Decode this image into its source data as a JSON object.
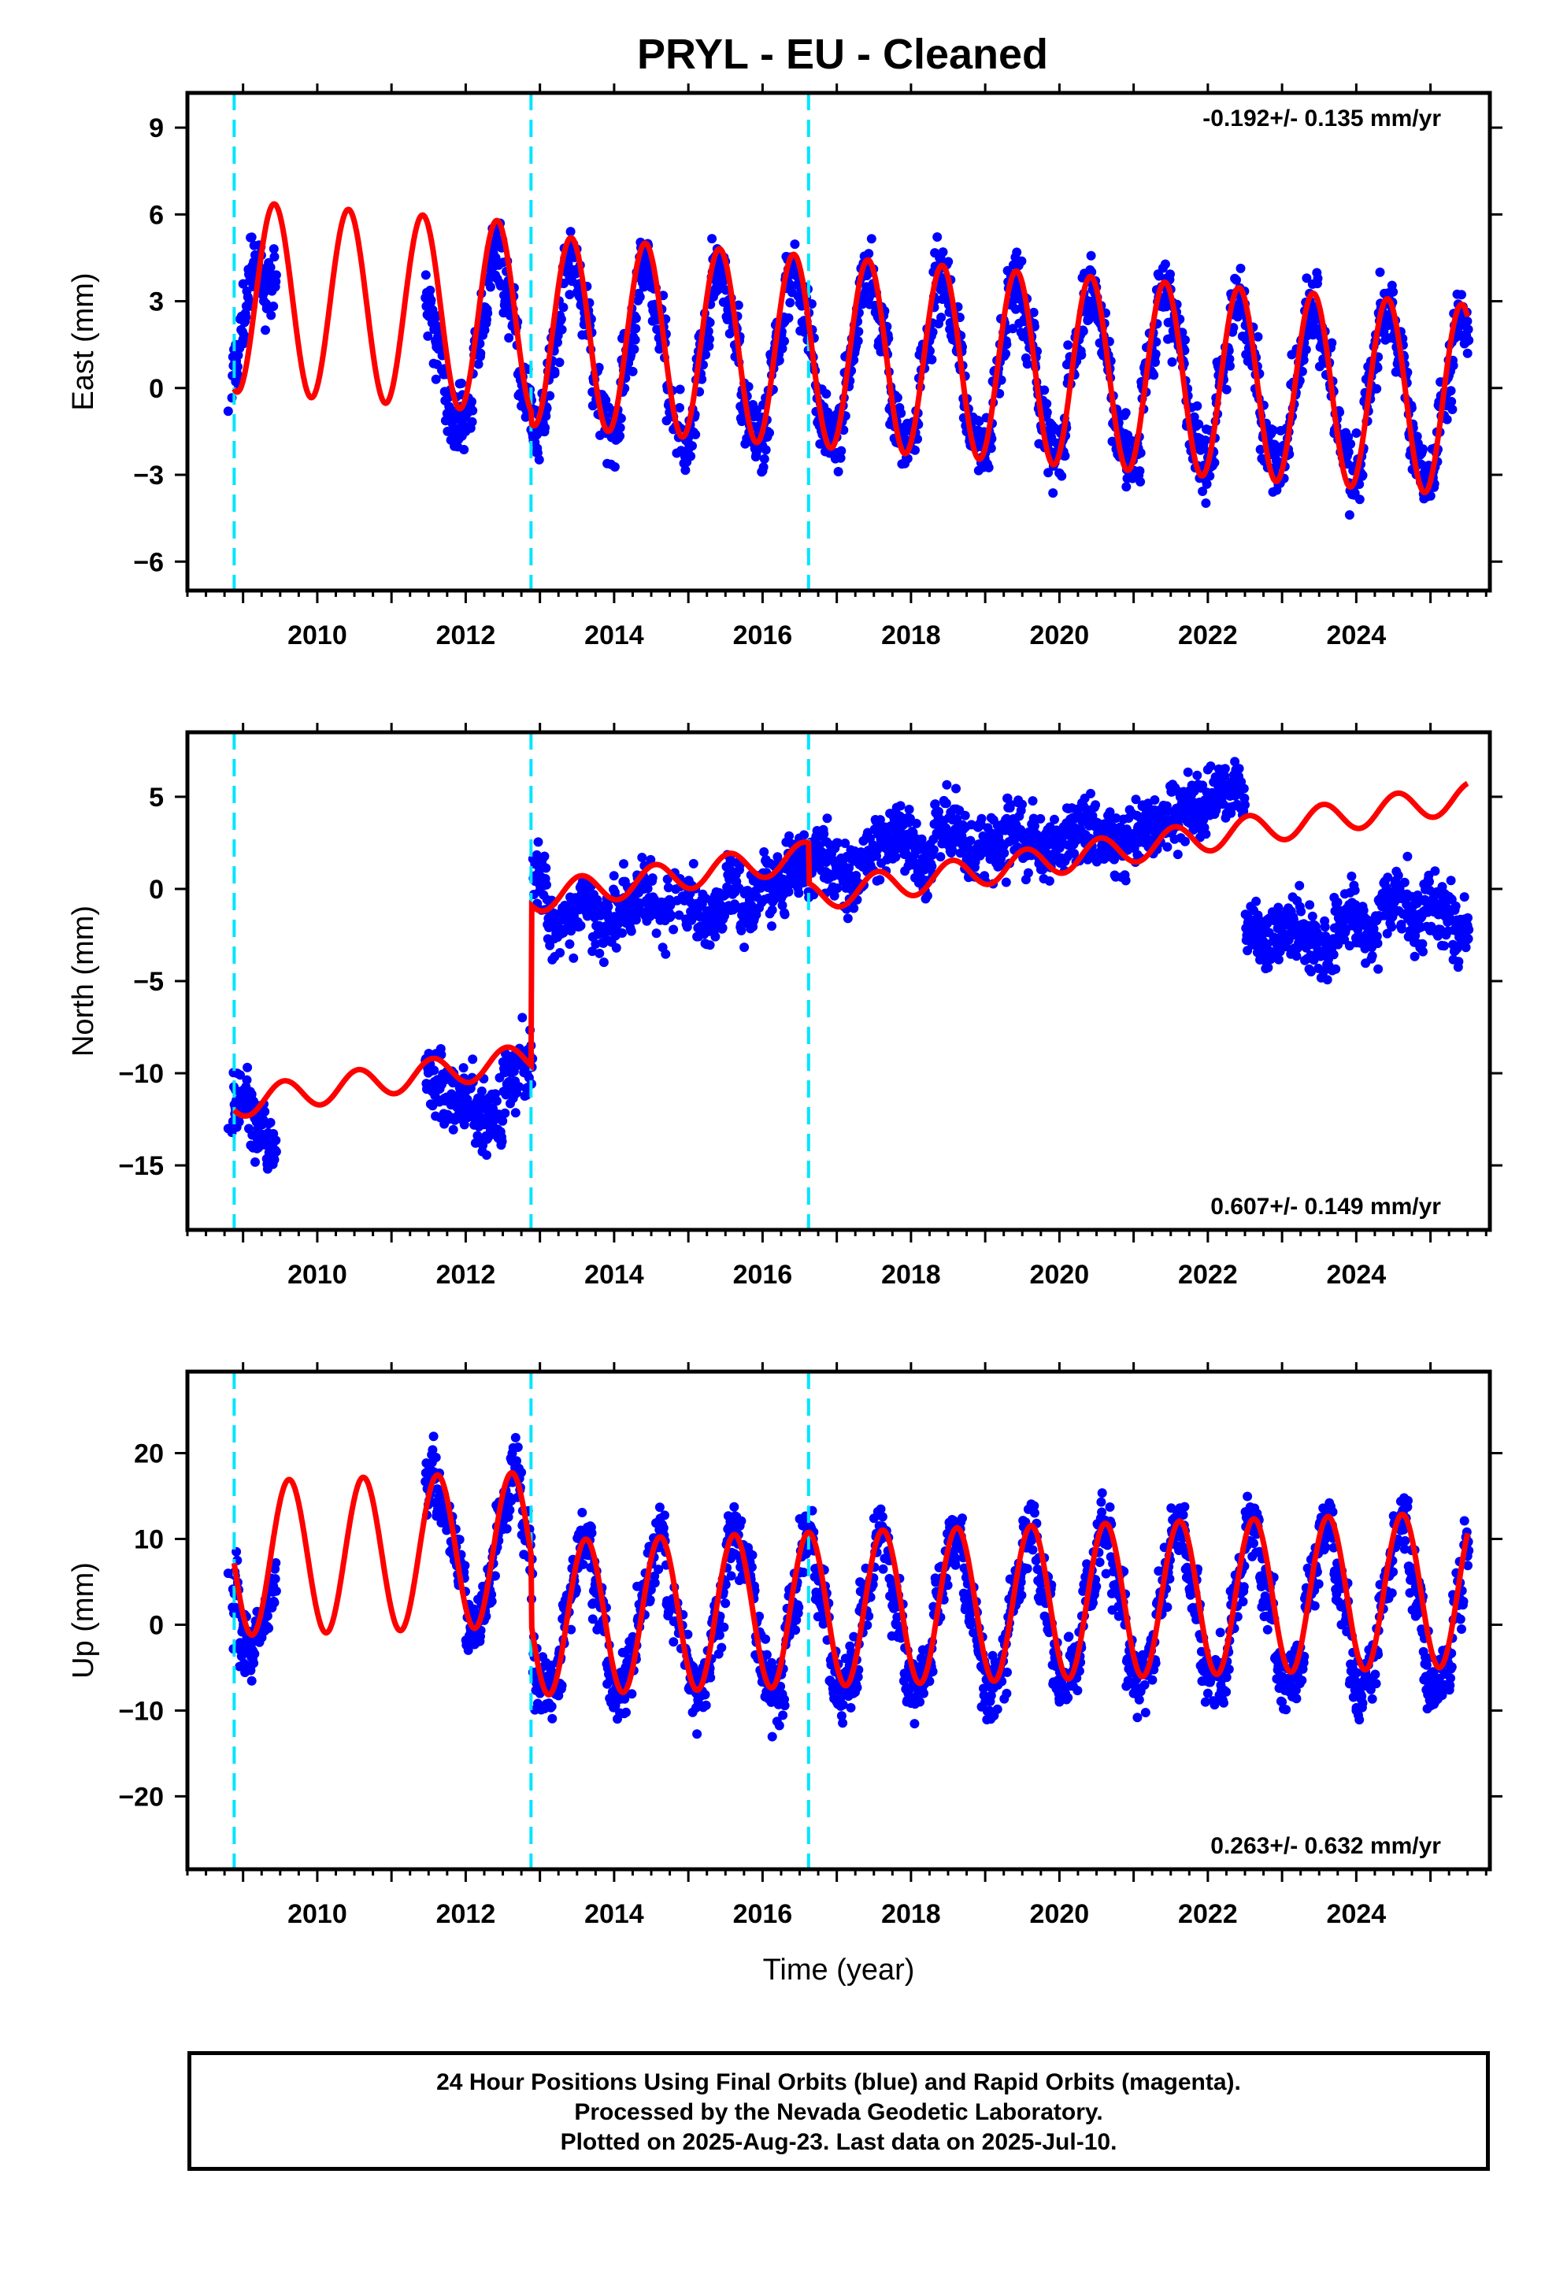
{
  "page": {
    "title": "PRYL  - EU - Cleaned",
    "footer_lines": [
      "24 Hour Positions Using Final Orbits (blue) and Rapid Orbits (magenta).",
      "Processed by the Nevada Geodetic Laboratory.",
      "Plotted on 2025-Aug-23. Last data on 2025-Jul-10."
    ]
  },
  "chart_data": [
    {
      "type": "scatter",
      "component": "east",
      "ylabel": "East (mm)",
      "xlabel": "",
      "xlim": [
        2008.25,
        2025.8
      ],
      "ylim": [
        -7,
        10.2
      ],
      "xticks": [
        2010,
        2012,
        2014,
        2016,
        2018,
        2020,
        2022,
        2024
      ],
      "yticks": [
        -6,
        -3,
        0,
        3,
        6,
        9
      ],
      "rate_label": "-0.192+/- 0.135 mm/yr",
      "rate_position": "top-right",
      "offsets": [
        2008.88,
        2012.88,
        2016.62
      ],
      "colors": {
        "points": "#0000ff",
        "model": "#ff0000",
        "offsets": "#00e5ff"
      },
      "series": [
        {
          "type": "scatter",
          "x": [
            2008.8,
            2008.9,
            2009.0,
            2009.1,
            2009.2,
            2009.3,
            2011.6,
            2011.8,
            2012.0,
            2012.2,
            2012.4,
            2012.6,
            2012.8,
            2013.0,
            2013.2,
            2013.4,
            2013.6,
            2013.8,
            2014.0,
            2014.2,
            2014.4,
            2014.6,
            2014.8,
            2015.0,
            2015.2,
            2015.4,
            2015.6,
            2015.8,
            2016.0,
            2016.2,
            2016.4,
            2016.6,
            2016.8,
            2017.0,
            2017.2,
            2017.4,
            2017.6,
            2017.8,
            2018.0,
            2018.2,
            2018.4,
            2018.6,
            2018.8,
            2019.0,
            2019.2,
            2019.4,
            2019.6,
            2019.8,
            2020.0,
            2020.2,
            2020.4,
            2020.6,
            2020.8,
            2021.0,
            2021.2,
            2021.4,
            2021.6,
            2021.8,
            2022.0,
            2022.2,
            2022.4,
            2022.6,
            2022.8,
            2023.0,
            2023.2,
            2023.4,
            2023.6,
            2023.8,
            2024.0,
            2024.2,
            2024.4,
            2024.6,
            2024.8,
            2025.0,
            2025.2,
            2025.4,
            2025.5
          ],
          "y": [
            -0.8,
            1.5,
            3.6,
            5.2,
            4.6,
            2.0,
            0.3,
            -1.8,
            -1.5,
            1.2,
            3.9,
            2.5,
            -0.3,
            -1.5,
            0.5,
            3.8,
            2.6,
            -0.5,
            -1.7,
            0.6,
            3.5,
            2.0,
            -1.0,
            -1.9,
            0.8,
            3.4,
            2.1,
            -1.0,
            -2.0,
            1.0,
            3.3,
            2.0,
            -1.0,
            -1.7,
            0.9,
            3.5,
            2.3,
            -0.8,
            -1.8,
            1.0,
            3.4,
            2.0,
            -1.0,
            -1.9,
            0.9,
            3.2,
            1.9,
            -1.0,
            -2.1,
            0.8,
            3.0,
            1.8,
            -1.2,
            -2.3,
            0.6,
            2.8,
            1.6,
            -1.2,
            -2.4,
            0.4,
            2.6,
            1.4,
            -1.4,
            -2.6,
            0.2,
            2.5,
            1.2,
            -1.6,
            -2.8,
            0.1,
            2.3,
            1.0,
            -1.8,
            -3.0,
            -0.4,
            1.8,
            1.2
          ]
        },
        {
          "type": "line",
          "name": "",
          "a0": 1.4,
          "trend": -0.192,
          "t0": 2016.0,
          "amp": 3.3,
          "phase_peak": 0.42,
          "steps": [
            [
              2012.88,
              -0.4
            ],
            [
              2016.62,
              0.0
            ]
          ],
          "x_range": [
            2008.88,
            2025.5
          ]
        }
      ]
    },
    {
      "type": "scatter",
      "component": "north",
      "ylabel": "North (mm)",
      "xlabel": "",
      "xlim": [
        2008.25,
        2025.8
      ],
      "ylim": [
        -18.5,
        8.5
      ],
      "xticks": [
        2010,
        2012,
        2014,
        2016,
        2018,
        2020,
        2022,
        2024
      ],
      "yticks": [
        -15,
        -10,
        -5,
        0,
        5
      ],
      "rate_label": "0.607+/- 0.149 mm/yr",
      "rate_position": "bottom-right",
      "offsets": [
        2008.88,
        2012.88,
        2016.62
      ],
      "colors": {
        "points": "#0000ff",
        "model": "#ff0000",
        "offsets": "#00e5ff"
      },
      "series": [
        {
          "type": "scatter",
          "x": [
            2008.8,
            2008.9,
            2009.0,
            2009.2,
            2009.4,
            2011.6,
            2011.8,
            2012.0,
            2012.2,
            2012.4,
            2012.6,
            2012.8,
            2013.0,
            2013.2,
            2013.4,
            2013.6,
            2013.8,
            2014.0,
            2014.2,
            2014.4,
            2014.6,
            2015.0,
            2015.2,
            2015.4,
            2015.6,
            2015.8,
            2016.0,
            2016.2,
            2016.4,
            2016.6,
            2016.8,
            2017.0,
            2017.2,
            2017.4,
            2017.6,
            2017.8,
            2018.0,
            2018.2,
            2018.4,
            2018.6,
            2018.8,
            2019.0,
            2019.2,
            2019.4,
            2019.6,
            2019.8,
            2020.0,
            2020.2,
            2020.4,
            2020.6,
            2020.8,
            2021.0,
            2021.2,
            2021.4,
            2021.6,
            2021.8,
            2022.0,
            2022.2,
            2022.4,
            2022.6,
            2022.8,
            2023.0,
            2023.2,
            2023.4,
            2023.6,
            2023.8,
            2024.0,
            2024.2,
            2024.4,
            2024.6,
            2024.8,
            2025.0,
            2025.2,
            2025.4,
            2025.5
          ],
          "y": [
            -13.0,
            -12.0,
            -11.5,
            -13.0,
            -14.0,
            -10.5,
            -11.5,
            -11.0,
            -12.5,
            -12.5,
            -10.5,
            -9.5,
            0.5,
            -2.0,
            -1.5,
            -0.5,
            -2.0,
            -1.5,
            -1.0,
            0.0,
            -1.0,
            -0.5,
            -1.5,
            -1.0,
            0.5,
            -1.0,
            0.5,
            0.0,
            1.5,
            1.5,
            2.0,
            1.0,
            0.5,
            1.5,
            2.5,
            3.0,
            2.5,
            1.5,
            3.5,
            3.0,
            2.0,
            2.0,
            2.5,
            3.0,
            2.5,
            2.0,
            2.5,
            3.0,
            3.5,
            2.5,
            2.0,
            3.0,
            3.5,
            3.5,
            4.0,
            4.5,
            4.5,
            5.0,
            5.5,
            -2.0,
            -3.0,
            -2.5,
            -2.0,
            -3.0,
            -3.5,
            -2.0,
            -1.5,
            -2.5,
            -1.0,
            -0.5,
            -2.0,
            -1.0,
            -1.5,
            -2.5,
            -2.0
          ]
        },
        {
          "type": "line",
          "name": "",
          "a0": -0.8,
          "trend": 0.607,
          "t0": 2016.0,
          "amp": 0.8,
          "phase_peak": 0.55,
          "steps": [
            [
              2012.88,
              8.7
            ],
            [
              2016.62,
              -2.2
            ]
          ],
          "x_range": [
            2008.88,
            2025.5
          ]
        }
      ]
    },
    {
      "type": "scatter",
      "component": "up",
      "ylabel": "Up (mm)",
      "xlabel": "Time (year)",
      "xlim": [
        2008.25,
        2025.8
      ],
      "ylim": [
        -28.5,
        29.5
      ],
      "xticks": [
        2010,
        2012,
        2014,
        2016,
        2018,
        2020,
        2022,
        2024
      ],
      "yticks": [
        -20,
        -10,
        0,
        10,
        20
      ],
      "rate_label": "0.263+/- 0.632 mm/yr",
      "rate_position": "bottom-right",
      "offsets": [
        2008.88,
        2012.88,
        2016.62
      ],
      "colors": {
        "points": "#0000ff",
        "model": "#ff0000",
        "offsets": "#00e5ff"
      },
      "series": [
        {
          "type": "scatter",
          "x": [
            2008.8,
            2008.9,
            2009.0,
            2009.1,
            2009.2,
            2011.5,
            2011.7,
            2011.9,
            2012.1,
            2012.3,
            2012.5,
            2012.7,
            2012.8,
            2013.0,
            2013.2,
            2013.4,
            2013.6,
            2013.8,
            2014.0,
            2014.2,
            2014.4,
            2014.6,
            2014.8,
            2015.2,
            2015.4,
            2015.6,
            2015.8,
            2016.0,
            2016.2,
            2016.4,
            2016.6,
            2016.8,
            2017.0,
            2017.2,
            2017.4,
            2017.6,
            2017.8,
            2018.0,
            2018.2,
            2018.4,
            2018.6,
            2018.8,
            2019.0,
            2019.2,
            2019.4,
            2019.6,
            2019.8,
            2020.0,
            2020.2,
            2020.4,
            2020.6,
            2020.8,
            2021.0,
            2021.2,
            2021.4,
            2021.6,
            2021.8,
            2022.0,
            2022.2,
            2022.4,
            2022.6,
            2022.8,
            2023.0,
            2023.2,
            2023.4,
            2023.6,
            2023.8,
            2024.0,
            2024.2,
            2024.4,
            2024.6,
            2024.8,
            2025.0,
            2025.2,
            2025.4,
            2025.5
          ],
          "y": [
            6.0,
            2.0,
            -3.0,
            -5.0,
            -1.0,
            18.0,
            12.0,
            8.0,
            -2.0,
            3.0,
            12.0,
            18.0,
            10.0,
            -8.0,
            -6.0,
            3.0,
            10.0,
            0.0,
            -8.0,
            -4.0,
            4.0,
            9.0,
            -2.0,
            -8.0,
            0.0,
            10.0,
            8.0,
            -4.0,
            -9.0,
            0.0,
            10.0,
            2.0,
            -9.0,
            -6.0,
            3.0,
            10.0,
            0.0,
            -9.0,
            -5.0,
            4.0,
            10.0,
            0.0,
            -9.0,
            -5.0,
            4.0,
            10.0,
            1.0,
            -9.0,
            -5.0,
            4.0,
            10.0,
            1.0,
            -8.0,
            -5.0,
            4.0,
            11.0,
            2.0,
            -8.0,
            -6.0,
            4.0,
            11.0,
            1.0,
            -9.0,
            -6.0,
            4.0,
            11.0,
            0.0,
            -10.0,
            -7.0,
            3.0,
            11.0,
            1.0,
            -9.0,
            -7.0,
            3.0,
            8.0
          ]
        },
        {
          "type": "line",
          "name": "",
          "a0": 1.6,
          "trend": 0.263,
          "t0": 2016.0,
          "amp": 9.0,
          "phase_peak": 0.62,
          "steps": [
            [
              2008.88,
              8.0
            ],
            [
              2012.88,
              -8.0
            ]
          ],
          "x_range": [
            2008.88,
            2025.5
          ]
        }
      ]
    }
  ]
}
